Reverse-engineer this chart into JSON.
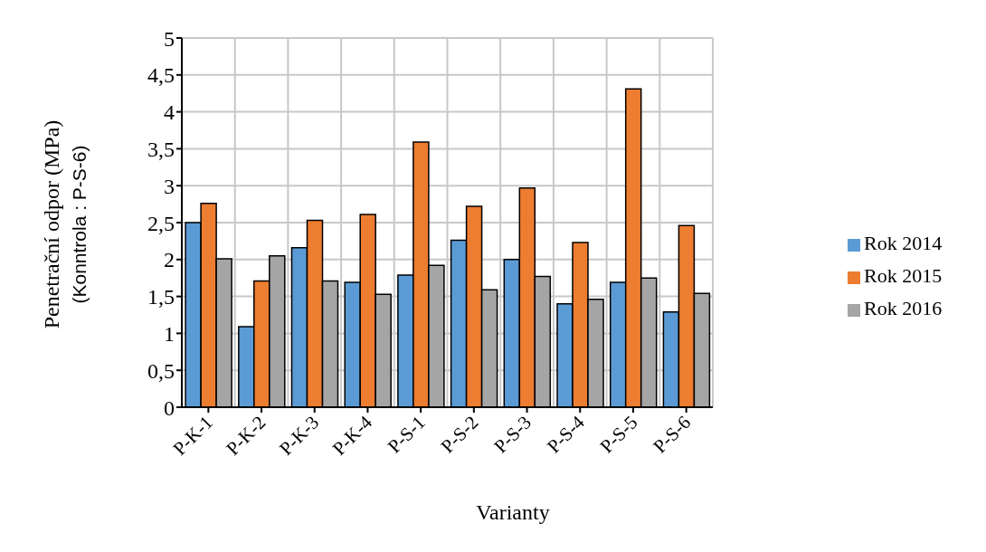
{
  "chart_data": {
    "type": "bar",
    "xlabel": "Varianty",
    "ylabel": "Penetrační odpor (MPa)\n(Konntrola : P-S-6)",
    "categories": [
      "P-K-1",
      "P-K-2",
      "P-K-3",
      "P-K-4",
      "P-S-1",
      "P-S-2",
      "P-S-3",
      "P-S-4",
      "P-S-5",
      "P-S-6"
    ],
    "series": [
      {
        "name": "Rok 2014",
        "color": "#5b9bd5",
        "values": [
          2.5,
          1.09,
          2.16,
          1.69,
          1.79,
          2.26,
          2.0,
          1.4,
          1.69,
          1.29
        ]
      },
      {
        "name": "Rok 2015",
        "color": "#ed7d31",
        "values": [
          2.76,
          1.71,
          2.53,
          2.61,
          3.59,
          2.72,
          2.97,
          2.23,
          4.31,
          2.46
        ]
      },
      {
        "name": "Rok 2016",
        "color": "#a5a5a5",
        "values": [
          2.01,
          2.05,
          1.71,
          1.53,
          1.92,
          1.59,
          1.77,
          1.46,
          1.75,
          1.54
        ]
      }
    ],
    "ylim": [
      0,
      5
    ],
    "yticks": [
      0,
      {
        "value": 0.5,
        "label": "0,5"
      },
      1,
      {
        "value": 1.5,
        "label": "1,5"
      },
      2,
      {
        "value": 2.5,
        "label": "2,5"
      },
      3,
      {
        "value": 3.5,
        "label": "3,5"
      },
      4,
      {
        "value": 4.5,
        "label": "4,5"
      },
      5
    ],
    "grid": true,
    "legend": "right"
  }
}
